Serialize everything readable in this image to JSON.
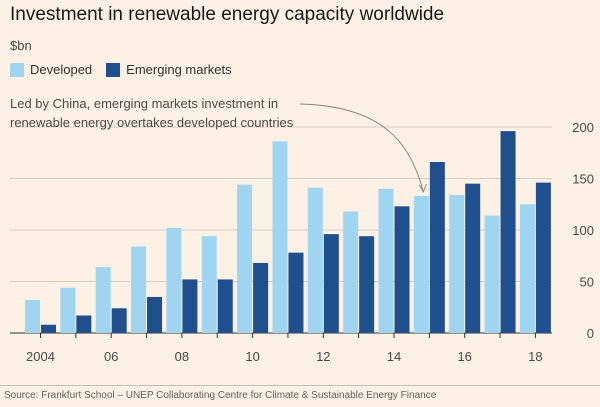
{
  "title": "Investment in renewable energy capacity worldwide",
  "unit": "$bn",
  "source": "Source: Frankfurt School – UNEP Collaborating Centre for Climate & Sustainable Energy Finance",
  "colors": {
    "developed": "#9fd5f0",
    "emerging": "#1f4f8c",
    "background": "#fdf1e5",
    "grid": "#d9cdc1"
  },
  "chart_data": {
    "type": "bar",
    "title": "Investment in renewable energy capacity worldwide",
    "ylabel": "$bn",
    "ylim": [
      0,
      200
    ],
    "yticks": [
      0,
      50,
      100,
      150,
      200
    ],
    "grid": true,
    "legend_position": "top-left",
    "categories": [
      2004,
      2005,
      2006,
      2007,
      2008,
      2009,
      2010,
      2011,
      2012,
      2013,
      2014,
      2015,
      2016,
      2017,
      2018
    ],
    "xtick_labels": [
      "2004",
      "",
      "06",
      "",
      "08",
      "",
      "10",
      "",
      "12",
      "",
      "14",
      "",
      "16",
      "",
      "18"
    ],
    "series": [
      {
        "name": "Developed",
        "values": [
          32,
          44,
          64,
          84,
          102,
          94,
          144,
          186,
          141,
          118,
          140,
          133,
          134,
          114,
          125
        ]
      },
      {
        "name": "Emerging markets",
        "values": [
          8,
          17,
          24,
          35,
          52,
          52,
          68,
          78,
          96,
          94,
          123,
          166,
          145,
          196,
          146
        ]
      }
    ],
    "annotation": {
      "lines": [
        "Led by China, emerging markets investment in",
        "renewable energy overtakes developed countries"
      ],
      "points_to": 2015
    }
  }
}
